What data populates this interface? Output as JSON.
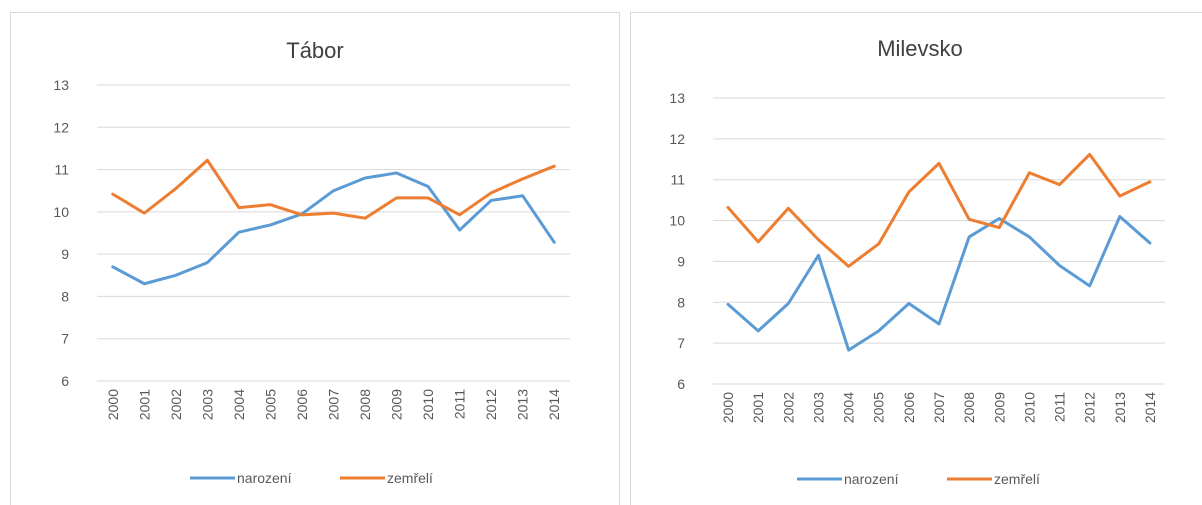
{
  "chart_data": [
    {
      "type": "line",
      "title": "Tábor",
      "categories": [
        "2000",
        "2001",
        "2002",
        "2003",
        "2004",
        "2005",
        "2006",
        "2007",
        "2008",
        "2009",
        "2010",
        "2011",
        "2012",
        "2013",
        "2014"
      ],
      "series": [
        {
          "name": "narození",
          "color": "#5b9bd5",
          "values": [
            8.7,
            8.3,
            8.5,
            8.8,
            9.52,
            9.69,
            9.95,
            10.5,
            10.8,
            10.92,
            10.6,
            9.57,
            10.27,
            10.38,
            9.28
          ]
        },
        {
          "name": "zemřelí",
          "color": "#ed7d31",
          "values": [
            10.42,
            9.97,
            10.55,
            11.22,
            10.1,
            10.17,
            9.93,
            9.97,
            9.85,
            10.33,
            10.33,
            9.93,
            10.45,
            10.78,
            11.08
          ]
        }
      ],
      "ylim": [
        6,
        13
      ],
      "yticks": [
        6,
        7,
        8,
        9,
        10,
        11,
        12,
        13
      ],
      "grid": true,
      "legend": "bottom"
    },
    {
      "type": "line",
      "title": "Milevsko",
      "categories": [
        "2000",
        "2001",
        "2002",
        "2003",
        "2004",
        "2005",
        "2006",
        "2007",
        "2008",
        "2009",
        "2010",
        "2011",
        "2012",
        "2013",
        "2014"
      ],
      "series": [
        {
          "name": "narození",
          "color": "#5b9bd5",
          "values": [
            7.95,
            7.3,
            7.97,
            9.15,
            6.83,
            7.3,
            7.97,
            7.47,
            9.6,
            10.05,
            9.6,
            8.9,
            8.4,
            10.1,
            9.45
          ]
        },
        {
          "name": "zemřelí",
          "color": "#ed7d31",
          "values": [
            10.32,
            9.48,
            10.3,
            9.53,
            8.88,
            9.43,
            10.7,
            11.4,
            10.03,
            9.83,
            11.17,
            10.88,
            11.62,
            10.6,
            10.95
          ]
        }
      ],
      "ylim": [
        6,
        13
      ],
      "yticks": [
        6,
        7,
        8,
        9,
        10,
        11,
        12,
        13
      ],
      "grid": true,
      "legend": "bottom"
    }
  ]
}
